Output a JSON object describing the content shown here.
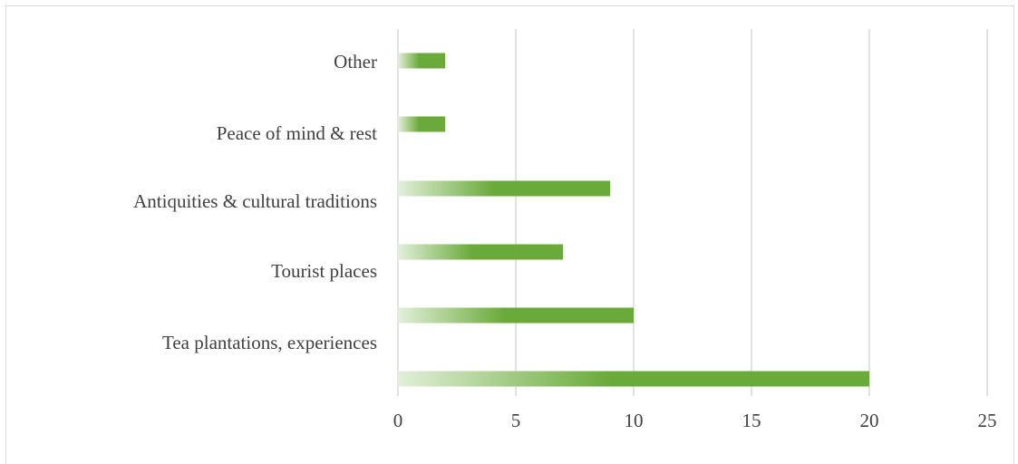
{
  "chart_data": {
    "type": "bar",
    "orientation": "horizontal",
    "categories": [
      "Other",
      "Peace of mind & rest",
      "Antiquities & cultural traditions",
      "Tourist places",
      "Tea plantations, experiences",
      ""
    ],
    "values": [
      2,
      2,
      9,
      7,
      10,
      20
    ],
    "xlim": [
      0,
      25
    ],
    "xticks": [
      "0",
      "5",
      "10",
      "15",
      "20",
      "25"
    ],
    "grid": true,
    "legend": "none",
    "title": "",
    "xlabel": "",
    "ylabel": "",
    "colors": {
      "bar": "#6aaa3a",
      "bar_light": "#e2efd9",
      "grid": "#d9d9d9",
      "text": "#404040"
    }
  }
}
